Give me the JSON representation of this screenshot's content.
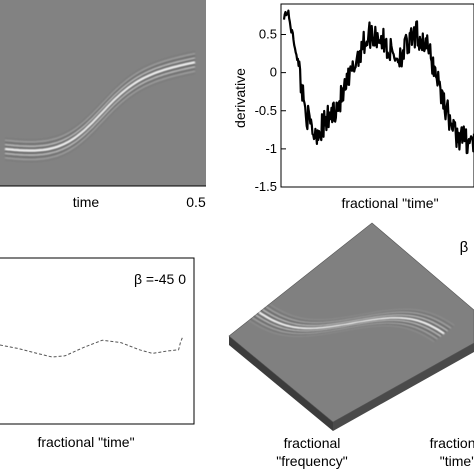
{
  "chart_data": [
    {
      "type": "heatmap",
      "panel": "top-left",
      "title": "",
      "xlabel": "time",
      "ylabel": "",
      "x_tick_labels": [
        "0.5"
      ],
      "colors": {
        "background": "#828282",
        "ridge": "#ffffff"
      },
      "ridge_shape": "s-curve"
    },
    {
      "type": "line",
      "panel": "top-right",
      "title": "",
      "xlabel": "fractional \"time\"",
      "ylabel": "derivative",
      "ylim": [
        -1.5,
        0.9
      ],
      "y_ticks": [
        0.5,
        0,
        -0.5,
        -1,
        -1.5
      ],
      "y_tick_labels": [
        "0.5",
        "0",
        "-0.5",
        "-1",
        "-1.5"
      ],
      "x": [
        0.0,
        0.02,
        0.04,
        0.07,
        0.1,
        0.13,
        0.16,
        0.2,
        0.25,
        0.3,
        0.35,
        0.4,
        0.45,
        0.5,
        0.55,
        0.6,
        0.65,
        0.7,
        0.75,
        0.8,
        0.85,
        0.9,
        0.95,
        1.0
      ],
      "y": [
        0.75,
        0.8,
        0.55,
        0.2,
        -0.3,
        -0.65,
        -0.8,
        -0.72,
        -0.55,
        -0.35,
        -0.05,
        0.3,
        0.5,
        0.48,
        0.3,
        0.2,
        0.35,
        0.5,
        0.35,
        0.0,
        -0.45,
        -0.8,
        -0.88,
        -0.9
      ],
      "noise_amplitude": 0.18,
      "grid": false,
      "colors": {
        "line": "#000000"
      }
    },
    {
      "type": "line",
      "panel": "bottom-left",
      "title": "",
      "xlabel": "fractional \"time\"",
      "ylabel": "",
      "annotation": "β =-45 0",
      "x": [
        0.0,
        0.1,
        0.2,
        0.28,
        0.35,
        0.45,
        0.55,
        0.65,
        0.75,
        0.82,
        0.9,
        0.96,
        0.97,
        0.98
      ],
      "y": [
        0.0,
        -0.03,
        -0.07,
        -0.1,
        -0.09,
        -0.02,
        0.04,
        0.02,
        -0.04,
        -0.07,
        -0.05,
        -0.04,
        0.02,
        0.06
      ],
      "grid": false,
      "line_style": "dashed",
      "colors": {
        "line": "#555555"
      }
    },
    {
      "type": "heatmap",
      "panel": "bottom-right",
      "view": "3d-surface",
      "title": "",
      "xlabel": "fractional \"frequency\"",
      "ylabel": "fractional \"time\"",
      "annotation": "β",
      "colors": {
        "surface": "#808080",
        "edge": "#5a5a5a",
        "ridge": "#ffffff"
      }
    }
  ]
}
